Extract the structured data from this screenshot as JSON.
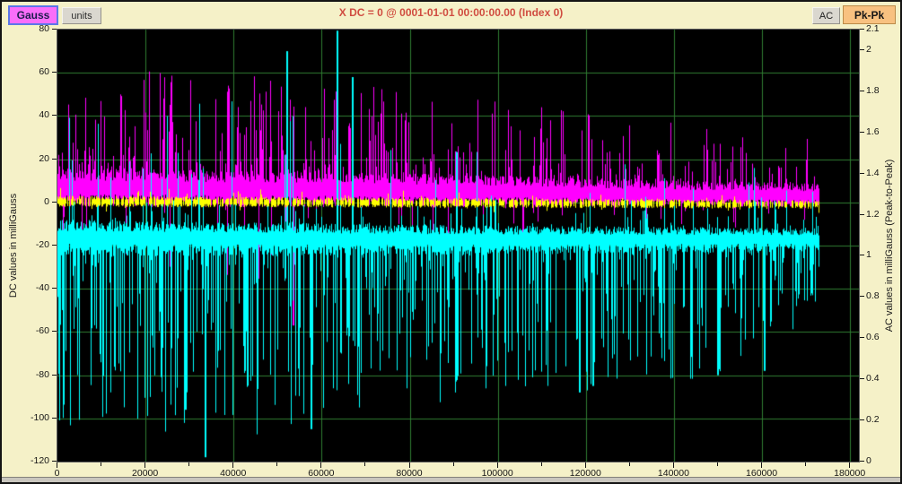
{
  "window": {
    "background": "#f5f1c8"
  },
  "toolbar": {
    "gauss_label": "Gauss",
    "units_label": "units",
    "ac_label": "AC",
    "pkpk_label": "Pk-Pk"
  },
  "header": {
    "title": "X DC = 0 @ 0001-01-01 00:00:00.00 (Index 0)",
    "title_color": "#d04c40"
  },
  "chart_data": {
    "type": "line",
    "title": "X DC = 0 @ 0001-01-01 00:00:00.00 (Index 0)",
    "plot_background": "#000000",
    "grid_color": "#2f7d32",
    "grid": "on",
    "x_axis": {
      "min": 0,
      "max": 182000,
      "major_tick_labels": [
        "0",
        "20000",
        "40000",
        "60000",
        "80000",
        "100000",
        "120000",
        "140000",
        "160000",
        "180000"
      ],
      "minor_tick_step": 10000,
      "gridline_step": 20000
    },
    "y_left": {
      "label": "DC values in milliGauss",
      "min": -120,
      "max": 80,
      "tick_labels": [
        "80",
        "60",
        "40",
        "20",
        "0",
        "-20",
        "-40",
        "-60",
        "-80",
        "-100",
        "-120"
      ],
      "gridline_step": 20
    },
    "y_right": {
      "label": "AC values in milliGauss (Peak-to-Peak)",
      "min": 0,
      "max": 2.1,
      "tick_labels": [
        "2.1",
        "2",
        "1.8",
        "1.6",
        "1.4",
        "1.2",
        "1",
        "0.8",
        "0.6",
        "0.4",
        "0.2",
        "0"
      ]
    },
    "x_data_end": 173000,
    "series": [
      {
        "id": "magenta-trace",
        "color": "#ff00ff",
        "seed": 11,
        "center": [
          [
            0,
            7
          ],
          [
            60000,
            6
          ],
          [
            100000,
            5
          ],
          [
            140000,
            3.5
          ],
          [
            173000,
            3
          ]
        ],
        "band_up": [
          [
            0,
            9
          ],
          [
            80000,
            8
          ],
          [
            120000,
            7
          ],
          [
            173000,
            6
          ]
        ],
        "band_down": [
          [
            0,
            9
          ],
          [
            80000,
            8
          ],
          [
            120000,
            6
          ],
          [
            173000,
            5
          ]
        ],
        "spike_up": {
          "prob": [
            [
              0,
              0.5
            ],
            [
              100000,
              0.45
            ],
            [
              173000,
              0.35
            ]
          ],
          "hmax": [
            [
              0,
              44
            ],
            [
              55000,
              48
            ],
            [
              90000,
              38
            ],
            [
              120000,
              32
            ],
            [
              173000,
              21
            ]
          ],
          "pow": 2.2
        },
        "spike_down": {
          "prob": [
            [
              0,
              0.1
            ],
            [
              173000,
              0.05
            ]
          ],
          "hmax": [
            [
              0,
              28
            ],
            [
              60000,
              45
            ],
            [
              100000,
              20
            ],
            [
              173000,
              10
            ]
          ],
          "pow": 2.6
        },
        "events_up": [],
        "events_down": [
          [
            53500,
            -57
          ]
        ]
      },
      {
        "id": "cyan-trace",
        "color": "#00ffff",
        "seed": 7,
        "center": [
          [
            0,
            -16
          ],
          [
            80000,
            -17
          ],
          [
            173000,
            -17
          ]
        ],
        "band_up": [
          [
            0,
            8
          ],
          [
            120000,
            6
          ],
          [
            173000,
            5
          ]
        ],
        "band_down": [
          [
            0,
            9
          ],
          [
            120000,
            7
          ],
          [
            173000,
            6
          ]
        ],
        "spike_up": {
          "prob": [
            [
              0,
              0.22
            ],
            [
              70000,
              0.18
            ],
            [
              173000,
              0.12
            ]
          ],
          "hmax": [
            [
              0,
              62
            ],
            [
              40000,
              58
            ],
            [
              80000,
              45
            ],
            [
              110000,
              35
            ],
            [
              173000,
              30
            ]
          ],
          "pow": 3.2
        },
        "spike_down": {
          "prob": [
            [
              0,
              0.55
            ],
            [
              120000,
              0.48
            ],
            [
              173000,
              0.42
            ]
          ],
          "hmax": [
            [
              0,
              82
            ],
            [
              60000,
              84
            ],
            [
              90000,
              68
            ],
            [
              125000,
              66
            ],
            [
              150000,
              58
            ],
            [
              165000,
              45
            ],
            [
              173000,
              26
            ]
          ],
          "pow": 1.35
        },
        "events_up": [
          [
            52000,
            70
          ],
          [
            63500,
            80
          ],
          [
            67000,
            58
          ]
        ],
        "events_down": [
          [
            29000,
            -96
          ],
          [
            33500,
            -118
          ],
          [
            57500,
            -105
          ],
          [
            118500,
            -88
          ],
          [
            121500,
            -85
          ],
          [
            150000,
            -80
          ],
          [
            160500,
            -78
          ]
        ]
      },
      {
        "id": "yellow-trace",
        "color": "#ffff00",
        "seed": 3,
        "center": [
          [
            0,
            0.5
          ],
          [
            120000,
            -0.5
          ],
          [
            173000,
            -1
          ]
        ],
        "band_up": [
          [
            0,
            2.6
          ],
          [
            173000,
            2
          ]
        ],
        "band_down": [
          [
            0,
            2.6
          ],
          [
            173000,
            2
          ]
        ],
        "spike_up": {
          "prob": [
            [
              0,
              0.08
            ],
            [
              173000,
              0.05
            ]
          ],
          "hmax": [
            [
              0,
              5
            ],
            [
              173000,
              3
            ]
          ],
          "pow": 2
        },
        "spike_down": {
          "prob": [
            [
              0,
              0.08
            ],
            [
              173000,
              0.05
            ]
          ],
          "hmax": [
            [
              0,
              5
            ],
            [
              173000,
              3
            ]
          ],
          "pow": 2
        },
        "draw_prob": [
          [
            0,
            0.8
          ],
          [
            100000,
            0.65
          ],
          [
            173000,
            0.55
          ]
        ],
        "events_up": [],
        "events_down": []
      }
    ]
  }
}
